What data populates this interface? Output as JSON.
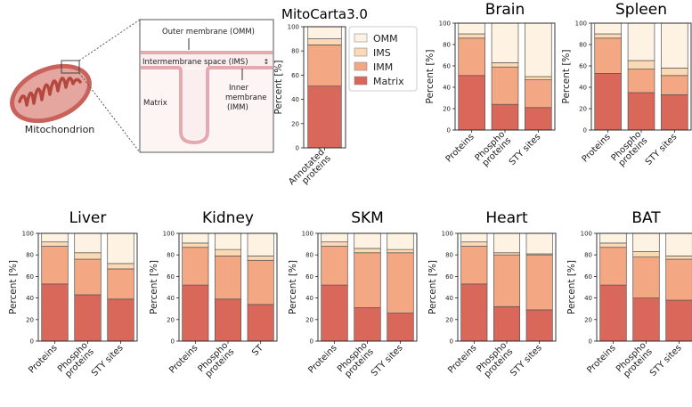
{
  "colors": {
    "matrix": "#d9675a",
    "imm": "#f4a783",
    "ims": "#fbd9b3",
    "omm": "#fef3e2",
    "mito_outer": "#c8625a",
    "mito_inner": "#e6a6a0",
    "diagram_membrane": "#e5aab0"
  },
  "diagram": {
    "caption": "Mitochondrion",
    "omm_label": "Outer membrane (OMM)",
    "ims_label": "Intermembrane space (IMS)",
    "matrix_label": "Matrix",
    "imm_label_line1": "Inner",
    "imm_label_line2": "membrane",
    "imm_label_line3": "(IMM)"
  },
  "legend": {
    "items": [
      {
        "label": "OMM",
        "color": "#fef3e2"
      },
      {
        "label": "IMS",
        "color": "#fbd9b3"
      },
      {
        "label": "IMM",
        "color": "#f4a783"
      },
      {
        "label": "Matrix",
        "color": "#d9675a"
      }
    ]
  },
  "chart_data": [
    {
      "type": "bar",
      "stacked": true,
      "title": "MitoCarta3.0",
      "ylabel": "Percent [%]",
      "ylim": [
        0,
        100
      ],
      "yticks": [
        "0",
        "20",
        "40",
        "60",
        "80",
        "100"
      ],
      "categories": [
        [
          "Annotated",
          "proteins"
        ]
      ],
      "series": [
        {
          "name": "Matrix",
          "values": [
            51
          ]
        },
        {
          "name": "IMM",
          "values": [
            34
          ]
        },
        {
          "name": "IMS",
          "values": [
            5
          ]
        },
        {
          "name": "OMM",
          "values": [
            10
          ]
        }
      ]
    },
    {
      "type": "bar",
      "stacked": true,
      "title": "Brain",
      "ylabel": "Percent [%]",
      "ylim": [
        0,
        100
      ],
      "yticks": [
        "0",
        "20",
        "40",
        "60",
        "80",
        "100"
      ],
      "categories": [
        [
          "Proteins"
        ],
        [
          "Phospho",
          "proteins"
        ],
        [
          "STY sites"
        ]
      ],
      "series": [
        {
          "name": "Matrix",
          "values": [
            51,
            24,
            21
          ]
        },
        {
          "name": "IMM",
          "values": [
            35,
            35,
            26
          ]
        },
        {
          "name": "IMS",
          "values": [
            4,
            4,
            3
          ]
        },
        {
          "name": "OMM",
          "values": [
            10,
            37,
            50
          ]
        }
      ]
    },
    {
      "type": "bar",
      "stacked": true,
      "title": "Spleen",
      "ylabel": "Percent [%]",
      "ylim": [
        0,
        100
      ],
      "yticks": [
        "0",
        "20",
        "40",
        "60",
        "80",
        "100"
      ],
      "categories": [
        [
          "Proteins"
        ],
        [
          "Phospho",
          "proteins"
        ],
        [
          "STY sites"
        ]
      ],
      "series": [
        {
          "name": "Matrix",
          "values": [
            53,
            35,
            33
          ]
        },
        {
          "name": "IMM",
          "values": [
            33,
            22,
            18
          ]
        },
        {
          "name": "IMS",
          "values": [
            4,
            8,
            7
          ]
        },
        {
          "name": "OMM",
          "values": [
            10,
            35,
            42
          ]
        }
      ]
    },
    {
      "type": "bar",
      "stacked": true,
      "title": "Liver",
      "ylabel": "Percent [%]",
      "ylim": [
        0,
        100
      ],
      "yticks": [
        "0",
        "20",
        "40",
        "60",
        "80",
        "100"
      ],
      "categories": [
        [
          "Proteins"
        ],
        [
          "Phospho",
          "proteins"
        ],
        [
          "STY sites"
        ]
      ],
      "series": [
        {
          "name": "Matrix",
          "values": [
            53,
            43,
            39
          ]
        },
        {
          "name": "IMM",
          "values": [
            35,
            33,
            28
          ]
        },
        {
          "name": "IMS",
          "values": [
            4,
            6,
            5
          ]
        },
        {
          "name": "OMM",
          "values": [
            8,
            18,
            28
          ]
        }
      ]
    },
    {
      "type": "bar",
      "stacked": true,
      "title": "Kidney",
      "ylabel": "Percent [%]",
      "ylim": [
        0,
        100
      ],
      "yticks": [
        "0",
        "20",
        "40",
        "60",
        "80",
        "100"
      ],
      "categories": [
        [
          "Proteins"
        ],
        [
          "Phospho",
          "proteins"
        ],
        [
          "ST"
        ]
      ],
      "series": [
        {
          "name": "Matrix",
          "values": [
            52,
            39,
            34
          ]
        },
        {
          "name": "IMM",
          "values": [
            35,
            40,
            41
          ]
        },
        {
          "name": "IMS",
          "values": [
            4,
            6,
            4
          ]
        },
        {
          "name": "OMM",
          "values": [
            9,
            15,
            21
          ]
        }
      ]
    },
    {
      "type": "bar",
      "stacked": true,
      "title": "SKM",
      "ylabel": "Percent [%]",
      "ylim": [
        0,
        100
      ],
      "yticks": [
        "0",
        "20",
        "40",
        "60",
        "80",
        "100"
      ],
      "categories": [
        [
          "Proteins"
        ],
        [
          "Phospho",
          "proteins"
        ],
        [
          "STY sites"
        ]
      ],
      "series": [
        {
          "name": "Matrix",
          "values": [
            52,
            31,
            26
          ]
        },
        {
          "name": "IMM",
          "values": [
            36,
            51,
            56
          ]
        },
        {
          "name": "IMS",
          "values": [
            4,
            4,
            3
          ]
        },
        {
          "name": "OMM",
          "values": [
            8,
            14,
            15
          ]
        }
      ]
    },
    {
      "type": "bar",
      "stacked": true,
      "title": "Heart",
      "ylabel": "Percent [%]",
      "ylim": [
        0,
        100
      ],
      "yticks": [
        "0",
        "20",
        "40",
        "60",
        "80",
        "100"
      ],
      "categories": [
        [
          "Proteins"
        ],
        [
          "Phospho",
          "proteins"
        ],
        [
          "STY sites"
        ]
      ],
      "series": [
        {
          "name": "Matrix",
          "values": [
            53,
            32,
            29
          ]
        },
        {
          "name": "IMM",
          "values": [
            35,
            48,
            51
          ]
        },
        {
          "name": "IMS",
          "values": [
            4,
            2,
            1
          ]
        },
        {
          "name": "OMM",
          "values": [
            8,
            18,
            19
          ]
        }
      ]
    },
    {
      "type": "bar",
      "stacked": true,
      "title": "BAT",
      "ylabel": "Percent [%]",
      "ylim": [
        0,
        100
      ],
      "yticks": [
        "0",
        "20",
        "40",
        "60",
        "80",
        "100"
      ],
      "categories": [
        [
          "Proteins"
        ],
        [
          "Phospho",
          "proteins"
        ],
        [
          "STY sites"
        ]
      ],
      "series": [
        {
          "name": "Matrix",
          "values": [
            52,
            40,
            38
          ]
        },
        {
          "name": "IMM",
          "values": [
            35,
            38,
            38
          ]
        },
        {
          "name": "IMS",
          "values": [
            4,
            5,
            3
          ]
        },
        {
          "name": "OMM",
          "values": [
            9,
            17,
            21
          ]
        }
      ]
    }
  ]
}
